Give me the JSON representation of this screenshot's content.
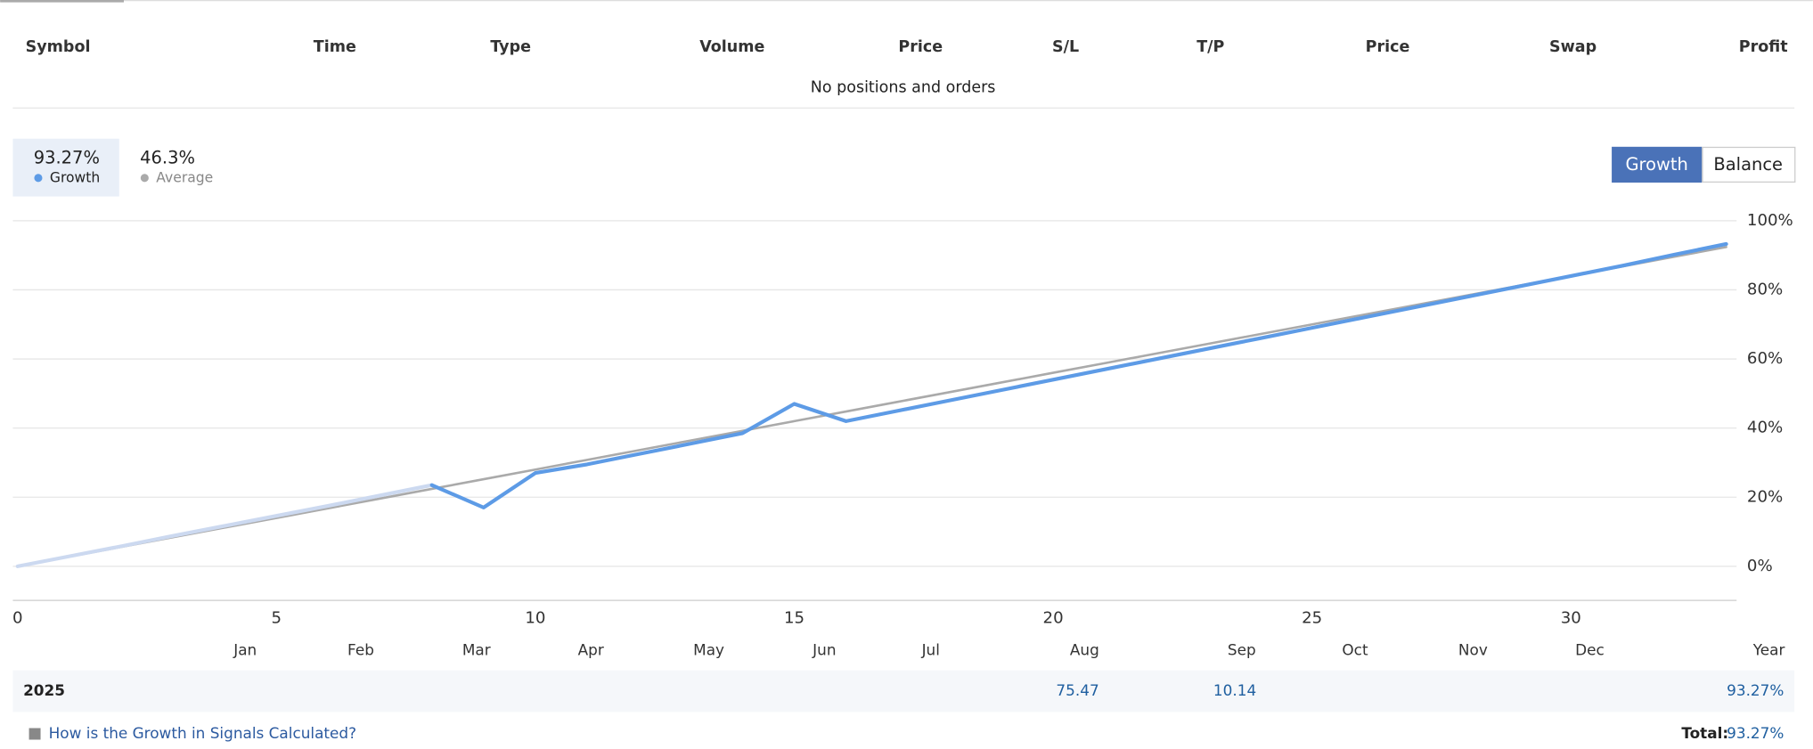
{
  "table": {
    "headers": [
      "Symbol",
      "Time",
      "Type",
      "Volume",
      "Price",
      "S/L",
      "T/P",
      "Price",
      "Swap",
      "Profit"
    ],
    "empty_message": "No positions and orders"
  },
  "stats": [
    {
      "value": "93.27%",
      "label": "Growth"
    },
    {
      "value": "46.3%",
      "label": "Average"
    }
  ],
  "buttons": [
    "Growth",
    "Balance"
  ],
  "chart": {
    "type": "line",
    "x": [
      0,
      1,
      2,
      3,
      4,
      5,
      6,
      7,
      8,
      9,
      10,
      11,
      12,
      13,
      14,
      15,
      16,
      17,
      18,
      19,
      20,
      21,
      22,
      23,
      24,
      25,
      26,
      27,
      28,
      29,
      30,
      31,
      32,
      33
    ],
    "series": [
      {
        "color": "#ccd9f0",
        "values": [
          0,
          2.9,
          5.8,
          8.8,
          11.7,
          14.6,
          17.5,
          20.5,
          23.5,
          null,
          null,
          null,
          null,
          null,
          null,
          null,
          null,
          null,
          null,
          null,
          null,
          null,
          null,
          null,
          null,
          null,
          null,
          null,
          null,
          null,
          null,
          null,
          null,
          null
        ]
      },
      {
        "name": "Growth",
        "color": "#5d9be6",
        "values": [
          null,
          null,
          null,
          null,
          null,
          null,
          null,
          null,
          23.5,
          17,
          27,
          29.5,
          32.5,
          35.5,
          38.5,
          47,
          42,
          45,
          48,
          51,
          54,
          57,
          60,
          63,
          66,
          69,
          72,
          75,
          78,
          81,
          84,
          87,
          90.2,
          93.27
        ]
      },
      {
        "name": "Average",
        "color": "#aaaaaa",
        "values": [
          0,
          2.8,
          5.6,
          8.4,
          11.2,
          14,
          16.8,
          19.6,
          22.4,
          25.2,
          28,
          30.8,
          33.6,
          36.4,
          39.2,
          42,
          44.8,
          47.6,
          50.4,
          53.2,
          56,
          58.8,
          61.6,
          64.4,
          67.2,
          70,
          72.8,
          75.6,
          78.4,
          81.2,
          84,
          86.8,
          89.6,
          92.4
        ]
      }
    ],
    "xlim": [
      -0.07,
      33.2
    ],
    "xticks": [
      0,
      5,
      10,
      15,
      20,
      25,
      30
    ],
    "ylim": [
      -10,
      100
    ],
    "yticks": [
      {
        "value": 0,
        "label": "0%"
      },
      {
        "value": 20,
        "label": "20%"
      },
      {
        "value": 40,
        "label": "40%"
      },
      {
        "value": 60,
        "label": "60%"
      },
      {
        "value": 80,
        "label": "80%"
      },
      {
        "value": 100,
        "label": "100%"
      }
    ],
    "grid": true
  },
  "months": [
    "Jan",
    "Feb",
    "Mar",
    "Apr",
    "May",
    "Jun",
    "Jul",
    "Aug",
    "Sep",
    "Oct",
    "Nov",
    "Dec",
    "Year"
  ],
  "year_rows": [
    {
      "year": "2025",
      "values": [
        null,
        null,
        null,
        null,
        null,
        null,
        null,
        "75.47",
        "10.14",
        null,
        null,
        null,
        "93.27%"
      ]
    }
  ],
  "footer": {
    "link": "How is the Growth in Signals Calculated?",
    "total_label": "Total:",
    "total_value": "93.27%"
  }
}
